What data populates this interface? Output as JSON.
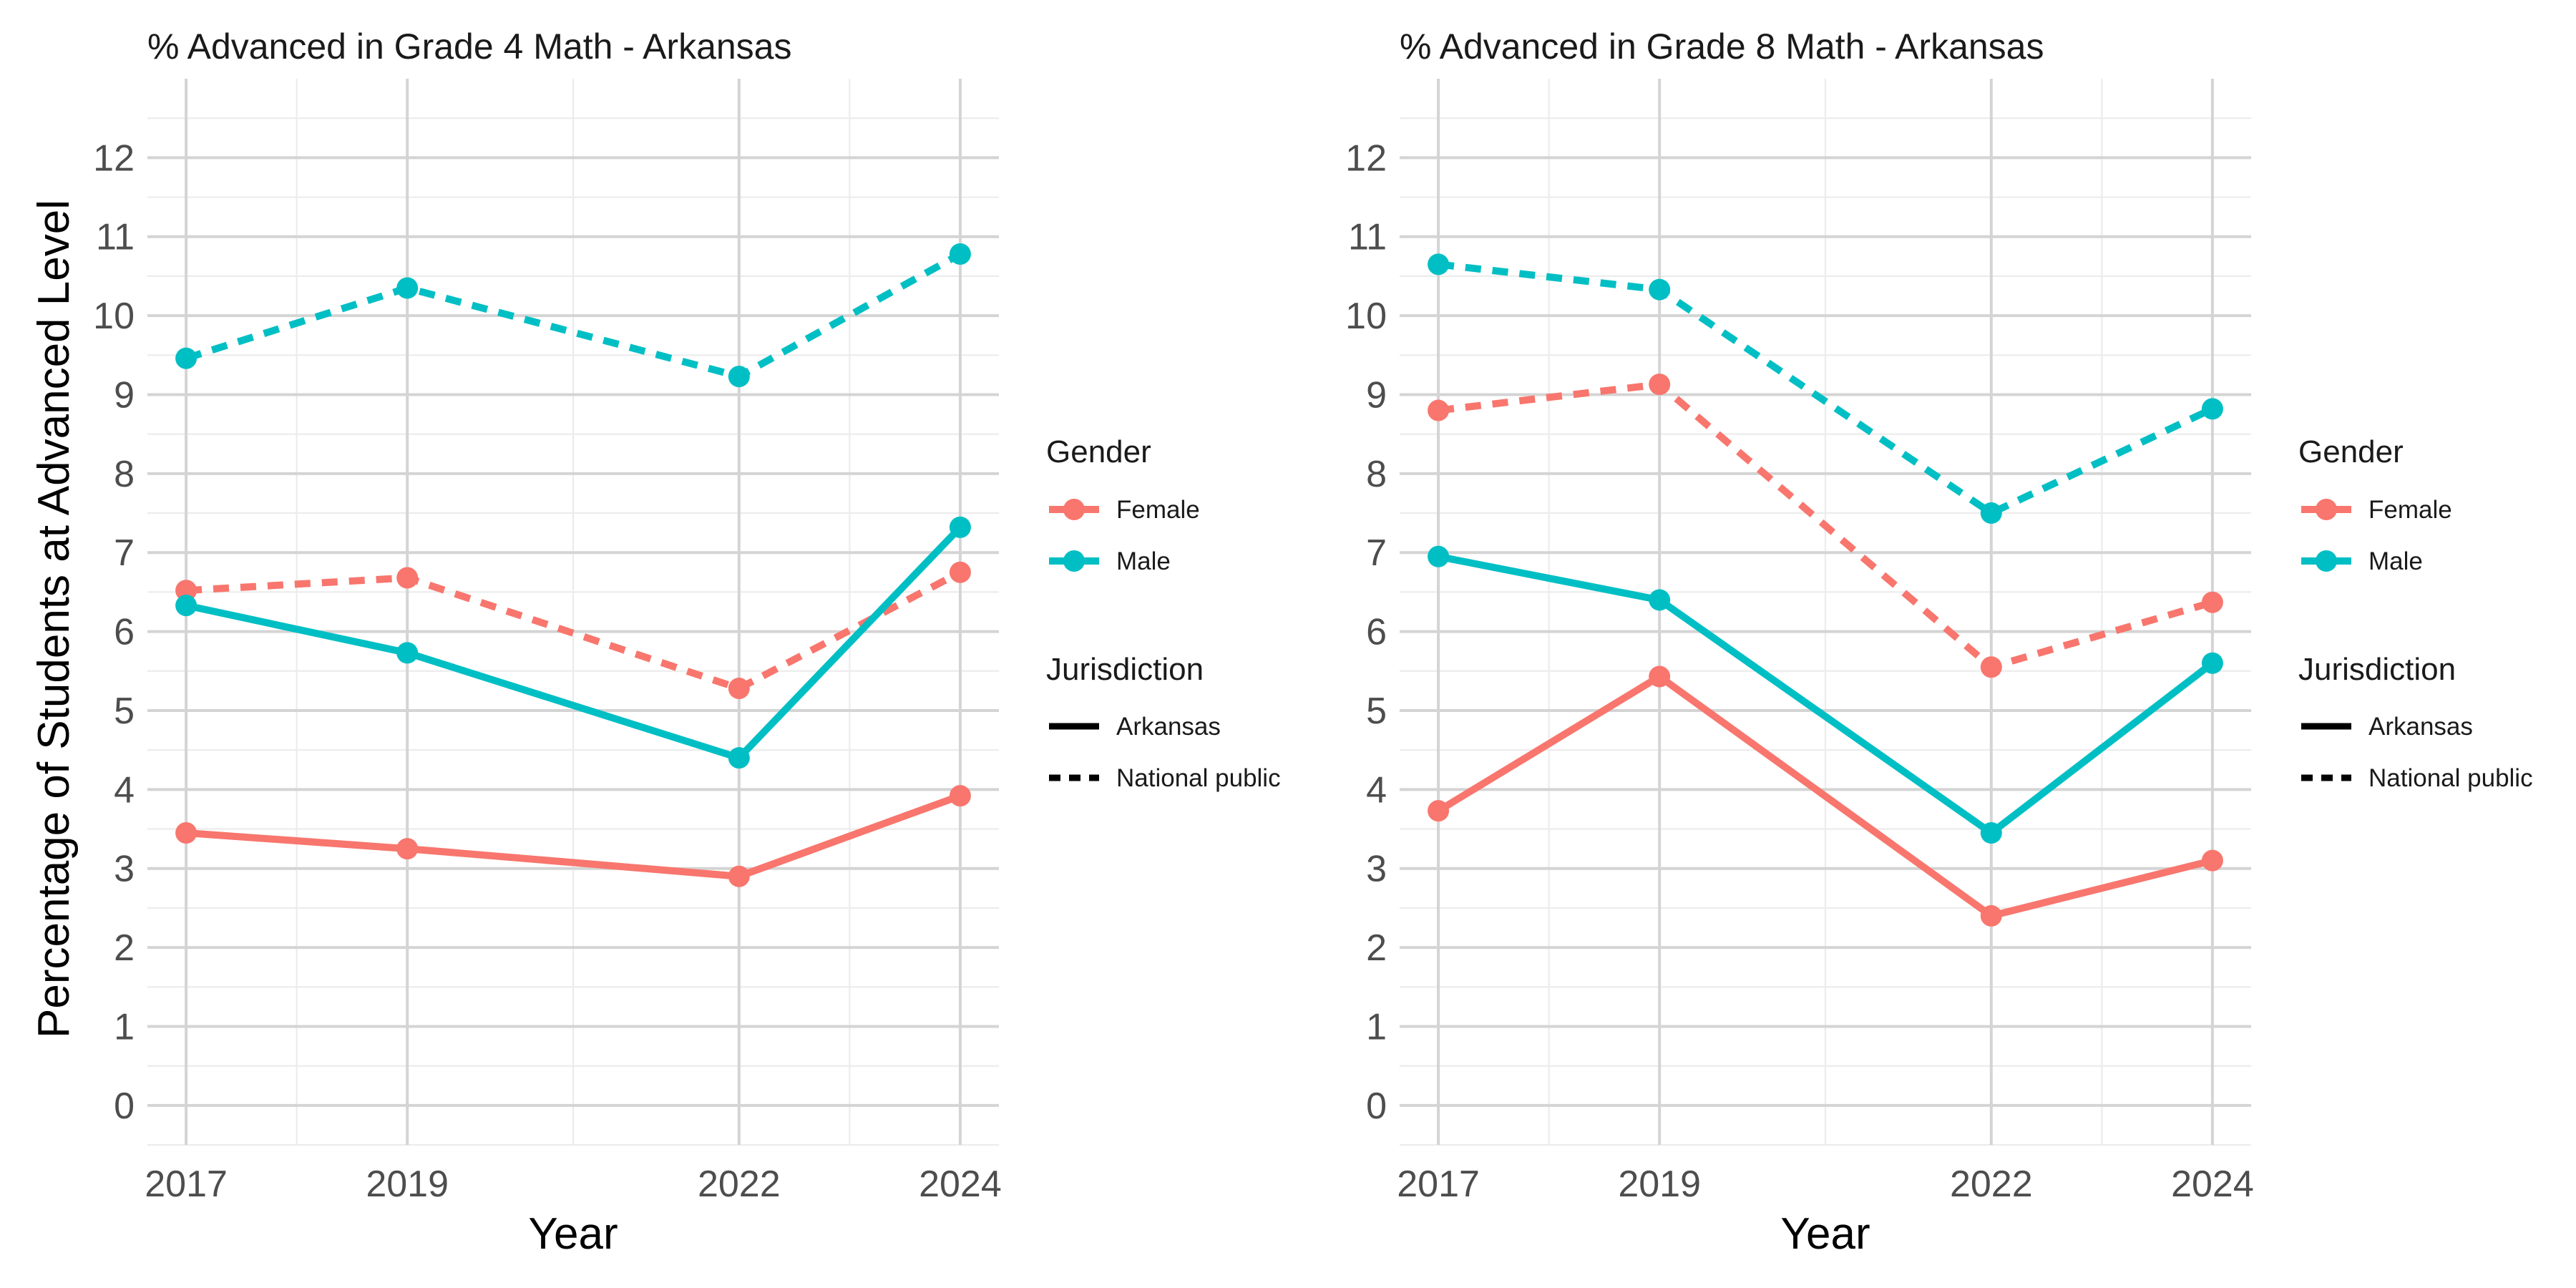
{
  "chart_data": [
    {
      "type": "line",
      "title": "% Advanced in Grade 4 Math - Arkansas",
      "xlabel": "Year",
      "ylabel": "Percentage of Students at Advanced Level",
      "x": [
        2017,
        2019,
        2022,
        2024
      ],
      "x_ticks": [
        "2017",
        "2019",
        "2022",
        "2024"
      ],
      "y_ticks": [
        "0",
        "1",
        "2",
        "3",
        "4",
        "5",
        "6",
        "7",
        "8",
        "9",
        "10",
        "11",
        "12"
      ],
      "xlim": [
        2016.65,
        2024.35
      ],
      "ylim": [
        -0.5,
        13.0
      ],
      "grid": true,
      "series": [
        {
          "gender": "Female",
          "jurisdiction": "Arkansas",
          "color": "#F8766D",
          "linetype": "solid",
          "values": [
            3.45,
            3.25,
            2.9,
            3.92
          ]
        },
        {
          "gender": "Female",
          "jurisdiction": "National public",
          "color": "#F8766D",
          "linetype": "dashed",
          "values": [
            6.52,
            6.68,
            5.28,
            6.75
          ]
        },
        {
          "gender": "Male",
          "jurisdiction": "Arkansas",
          "color": "#00BFC4",
          "linetype": "solid",
          "values": [
            6.33,
            5.73,
            4.4,
            7.32
          ]
        },
        {
          "gender": "Male",
          "jurisdiction": "National public",
          "color": "#00BFC4",
          "linetype": "dashed",
          "values": [
            9.46,
            10.35,
            9.23,
            10.78
          ]
        }
      ]
    },
    {
      "type": "line",
      "title": "% Advanced in Grade 8 Math - Arkansas",
      "xlabel": "Year",
      "ylabel": "",
      "x": [
        2017,
        2019,
        2022,
        2024
      ],
      "x_ticks": [
        "2017",
        "2019",
        "2022",
        "2024"
      ],
      "y_ticks": [
        "0",
        "1",
        "2",
        "3",
        "4",
        "5",
        "6",
        "7",
        "8",
        "9",
        "10",
        "11",
        "12"
      ],
      "xlim": [
        2016.65,
        2024.35
      ],
      "ylim": [
        -0.5,
        13.0
      ],
      "grid": true,
      "series": [
        {
          "gender": "Female",
          "jurisdiction": "Arkansas",
          "color": "#F8766D",
          "linetype": "solid",
          "values": [
            3.73,
            5.43,
            2.4,
            3.1
          ]
        },
        {
          "gender": "Female",
          "jurisdiction": "National public",
          "color": "#F8766D",
          "linetype": "dashed",
          "values": [
            8.8,
            9.13,
            5.55,
            6.37
          ]
        },
        {
          "gender": "Male",
          "jurisdiction": "Arkansas",
          "color": "#00BFC4",
          "linetype": "solid",
          "values": [
            6.95,
            6.4,
            3.45,
            5.6
          ]
        },
        {
          "gender": "Male",
          "jurisdiction": "National public",
          "color": "#00BFC4",
          "linetype": "dashed",
          "values": [
            10.65,
            10.33,
            7.5,
            8.82
          ]
        }
      ]
    }
  ],
  "legend": {
    "placement": "right",
    "gender_title": "Gender",
    "gender_items": [
      {
        "label": "Female",
        "color": "#F8766D"
      },
      {
        "label": "Male",
        "color": "#00BFC4"
      }
    ],
    "jurisdiction_title": "Jurisdiction",
    "jurisdiction_items": [
      {
        "label": "Arkansas",
        "linetype": "solid"
      },
      {
        "label": "National public",
        "linetype": "dashed"
      }
    ]
  }
}
